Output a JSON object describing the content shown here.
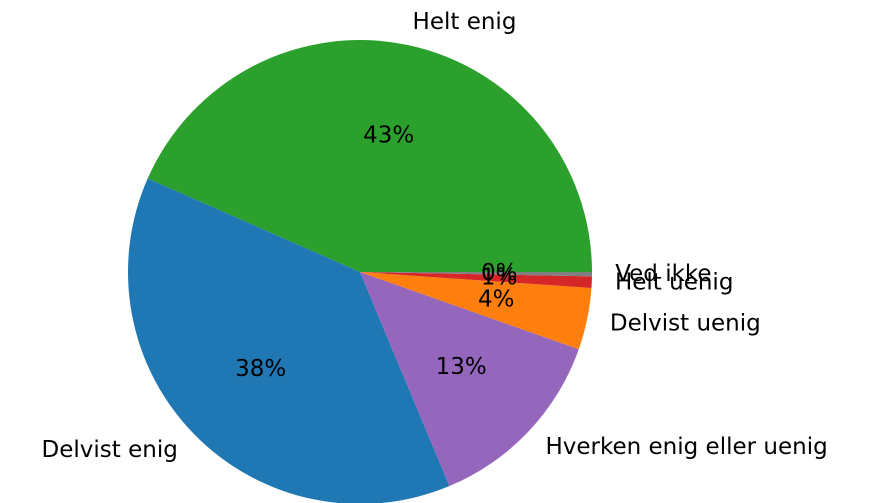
{
  "chart_data": {
    "type": "pie",
    "categories": [
      "Helt enig",
      "Delvist enig",
      "Hverken enig eller uenig",
      "Delvist uenig",
      "Helt uenig",
      "Ved ikke"
    ],
    "values": [
      43.4,
      37.9,
      13.3,
      4.3,
      0.8,
      0.3
    ],
    "value_labels": [
      "43%",
      "38%",
      "13%",
      "4%",
      "1%",
      "0%"
    ],
    "colors": [
      "#2ca02c",
      "#1f77b4",
      "#9467bd",
      "#ff7f0e",
      "#d62728",
      "#7f7f7f"
    ]
  }
}
